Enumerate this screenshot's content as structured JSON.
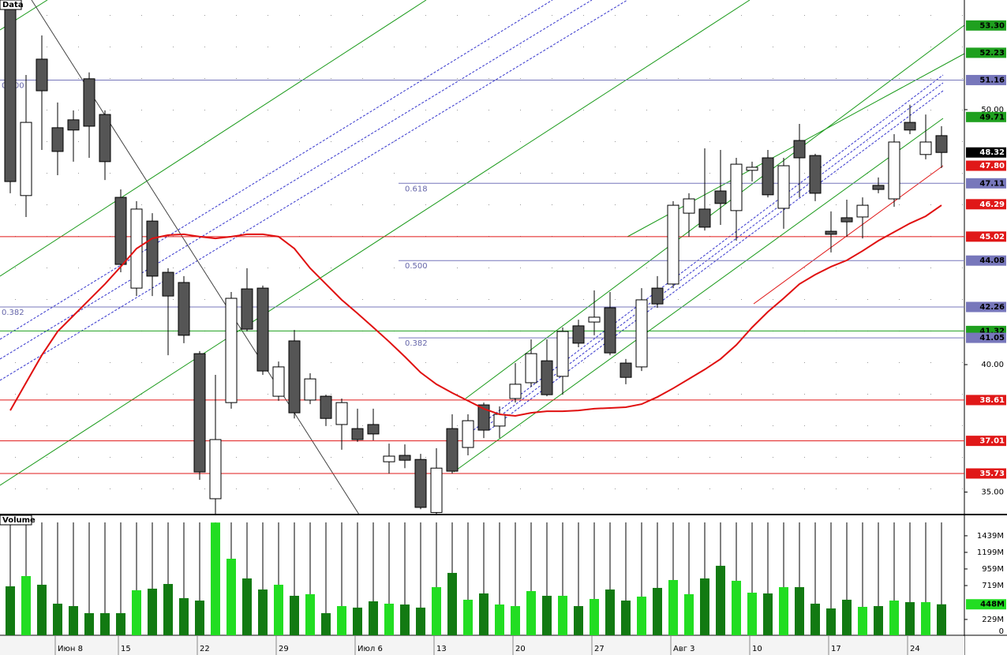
{
  "chart_data": [
    {
      "type": "candlestick",
      "panel": "Data",
      "ylim": [
        34.12,
        54.3
      ],
      "yticks": [
        {
          "value": 35,
          "label": "35.00"
        },
        {
          "value": 40,
          "label": "40.00"
        },
        {
          "value": 50,
          "label": "50.00"
        }
      ],
      "up_color": "#ffffff",
      "down_color": "#555555",
      "open": [
        54.16,
        46.63,
        51.98,
        49.29,
        49.6,
        51.21,
        49.81,
        46.56,
        43.0,
        45.63,
        43.62,
        43.22,
        40.43,
        34.74,
        38.51,
        42.97,
        43.0,
        38.76,
        40.93,
        38.61,
        38.76,
        37.65,
        37.49,
        37.65,
        36.19,
        36.44,
        36.28,
        34.2,
        37.49,
        36.75,
        38.42,
        37.59,
        38.67,
        39.29,
        40.15,
        39.54,
        41.52,
        41.67,
        42.23,
        40.06,
        39.91,
        43.0,
        43.16,
        45.94,
        46.1,
        46.81,
        46.04,
        47.62,
        48.11,
        46.13,
        48.79,
        48.2,
        45.23,
        45.76,
        45.79,
        47.03,
        46.5,
        49.5,
        48.24,
        48.98
      ],
      "high": [
        54.3,
        51.36,
        52.91,
        50.28,
        49.97,
        51.46,
        49.97,
        46.87,
        46.41,
        45.94,
        43.78,
        43.47,
        40.53,
        39.6,
        42.85,
        43.78,
        43.1,
        40.12,
        41.36,
        39.66,
        38.82,
        38.67,
        38.27,
        38.27,
        36.9,
        36.87,
        36.5,
        36.72,
        38.05,
        38.05,
        38.51,
        38.36,
        40.06,
        40.99,
        40.99,
        41.46,
        41.76,
        42.91,
        42.85,
        40.22,
        43.0,
        43.47,
        46.41,
        46.72,
        48.48,
        48.42,
        48.11,
        47.96,
        48.42,
        48.11,
        49.44,
        48.27,
        46.01,
        46.47,
        46.56,
        47.34,
        49.04,
        50.19,
        49.81,
        49.35
      ],
      "low": [
        46.72,
        45.79,
        48.42,
        47.43,
        47.96,
        48.11,
        47.24,
        43.62,
        42.69,
        42.69,
        40.37,
        40.84,
        35.48,
        34.12,
        38.27,
        41.3,
        39.6,
        38.58,
        37.89,
        38.45,
        37.59,
        36.66,
        36.97,
        37.03,
        35.73,
        35.94,
        34.33,
        34.12,
        35.73,
        36.44,
        37.12,
        37.12,
        38.51,
        39.13,
        38.76,
        38.82,
        40.68,
        41.15,
        40.37,
        39.23,
        39.75,
        42.23,
        43.0,
        45.02,
        45.26,
        45.48,
        44.86,
        47.18,
        46.56,
        45.33,
        46.56,
        46.41,
        44.4,
        45.02,
        44.95,
        46.72,
        46.19,
        49.04,
        48.05,
        47.71
      ],
      "close": [
        47.18,
        49.5,
        50.74,
        48.36,
        49.2,
        49.35,
        47.96,
        43.93,
        46.1,
        43.47,
        42.69,
        41.15,
        35.79,
        37.06,
        42.6,
        41.39,
        39.75,
        39.91,
        38.11,
        39.44,
        37.89,
        38.51,
        37.06,
        37.28,
        36.41,
        36.25,
        34.4,
        35.94,
        35.82,
        37.8,
        37.43,
        38.05,
        39.23,
        40.43,
        38.82,
        41.3,
        40.84,
        41.86,
        40.46,
        39.5,
        42.54,
        42.38,
        46.25,
        46.5,
        45.39,
        46.32,
        47.86,
        47.74,
        46.66,
        47.8,
        48.11,
        46.72,
        45.11,
        45.6,
        46.25,
        46.87,
        48.73,
        49.2,
        48.73,
        48.32
      ],
      "moving_average": {
        "color": "#e01010",
        "values": [
          38.2,
          39.29,
          40.37,
          41.3,
          41.92,
          42.54,
          43.16,
          43.84,
          44.55,
          44.95,
          45.08,
          45.11,
          45.02,
          44.95,
          45.02,
          45.11,
          45.11,
          45.02,
          44.55,
          43.78,
          43.16,
          42.54,
          42.01,
          41.46,
          40.9,
          40.31,
          39.69,
          39.23,
          38.89,
          38.58,
          38.27,
          38.05,
          37.99,
          38.11,
          38.17,
          38.17,
          38.2,
          38.27,
          38.3,
          38.33,
          38.45,
          38.73,
          39.07,
          39.44,
          39.81,
          40.22,
          40.77,
          41.46,
          42.07,
          42.6,
          43.16,
          43.53,
          43.84,
          44.09,
          44.46,
          44.86,
          45.2,
          45.54,
          45.82,
          46.25
        ]
      },
      "levels": [
        {
          "value": 53.3,
          "label": "53.30",
          "color": "#1fa01f",
          "line": "none"
        },
        {
          "value": 52.23,
          "label": "52.23",
          "color": "#1fa01f",
          "line": "none"
        },
        {
          "value": 51.16,
          "label": "51.16",
          "color": "#7777bb",
          "line": "full",
          "fib": "0.000"
        },
        {
          "value": 49.71,
          "label": "49.71",
          "color": "#1fa01f",
          "line": "none"
        },
        {
          "value": 48.32,
          "label": "48.32",
          "color": "#000000",
          "line": "none"
        },
        {
          "value": 47.8,
          "label": "47.80",
          "color": "#e01818",
          "line": "none"
        },
        {
          "value": 47.11,
          "label": "47.11",
          "color": "#7777bb",
          "line": "fib",
          "fib": "0.618"
        },
        {
          "value": 46.29,
          "label": "46.29",
          "color": "#e01818",
          "line": "none"
        },
        {
          "value": 45.02,
          "label": "45.02",
          "color": "#e01818",
          "line": "full"
        },
        {
          "value": 44.08,
          "label": "44.08",
          "color": "#7777bb",
          "line": "fib",
          "fib": "0.500"
        },
        {
          "value": 42.26,
          "label": "42.26",
          "color": "#7777bb",
          "line": "full",
          "fib": "0.382"
        },
        {
          "value": 41.32,
          "label": "41.32",
          "color": "#1fa01f",
          "line": "full"
        },
        {
          "value": 41.05,
          "label": "41.05",
          "color": "#7777bb",
          "line": "fib",
          "fib": "0.382"
        },
        {
          "value": 38.61,
          "label": "38.61",
          "color": "#e01818",
          "line": "full"
        },
        {
          "value": 37.01,
          "label": "37.01",
          "color": "#e01818",
          "line": "full"
        },
        {
          "value": 35.73,
          "label": "35.73",
          "color": "#e01818",
          "line": "full"
        }
      ]
    },
    {
      "type": "bar",
      "panel": "Volume",
      "ylim": [
        0,
        1632
      ],
      "yticks": [
        0,
        {
          "value": 229,
          "label": "229M"
        },
        {
          "value": 719,
          "label": "719M"
        },
        {
          "value": 959,
          "label": "959M"
        },
        {
          "value": 1199,
          "label": "1199M"
        },
        {
          "value": 1439,
          "label": "1439M"
        }
      ],
      "current": {
        "value": 448,
        "label": "448M",
        "color": "#22dd22"
      },
      "up_color": "#22dd22",
      "down_color": "#127a12",
      "categories": [
        null,
        null,
        null,
        "Июн 8",
        null,
        null,
        null,
        "15",
        null,
        null,
        null,
        null,
        "22",
        null,
        null,
        null,
        null,
        "29",
        null,
        null,
        null,
        null,
        "Июл 6",
        null,
        null,
        null,
        null,
        "13",
        null,
        null,
        null,
        null,
        "20",
        null,
        null,
        null,
        null,
        "27",
        null,
        null,
        null,
        null,
        "Авг 3",
        null,
        null,
        null,
        null,
        "10",
        null,
        null,
        null,
        null,
        "17",
        null,
        null,
        null,
        null,
        "24",
        null,
        null
      ],
      "values": [
        708,
        856,
        731,
        457,
        422,
        320,
        320,
        320,
        651,
        674,
        742,
        537,
        502,
        1630,
        1107,
        822,
        662,
        731,
        571,
        594,
        320,
        422,
        400,
        491,
        457,
        445,
        400,
        696,
        902,
        514,
        605,
        445,
        422,
        639,
        571,
        571,
        422,
        525,
        662,
        502,
        559,
        685,
        799,
        594,
        822,
        1005,
        788,
        616,
        605,
        696,
        696,
        457,
        388,
        514,
        411,
        422,
        502,
        479,
        479,
        448
      ]
    }
  ]
}
